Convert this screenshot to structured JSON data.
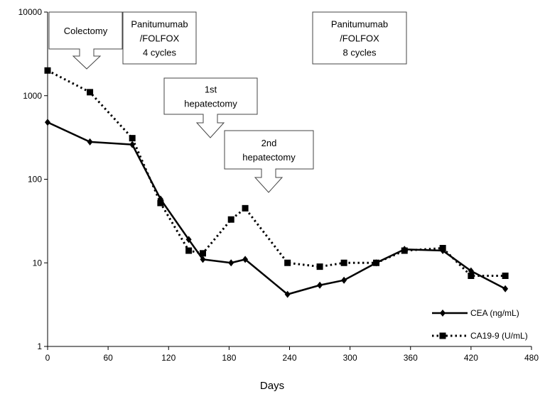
{
  "chart_data": {
    "type": "line",
    "xlabel": "Days",
    "ylabel": "",
    "title": "",
    "yscale": "log",
    "xlim": [
      0,
      480
    ],
    "ylim": [
      1,
      10000
    ],
    "x_ticks": [
      "0",
      "60",
      "120",
      "180",
      "240",
      "300",
      "360",
      "420",
      "480"
    ],
    "y_ticks": [
      "1",
      "10",
      "100",
      "1000",
      "10000"
    ],
    "grid": false,
    "legend_position": "bottom-right",
    "series": [
      {
        "name": "CEA (ng/mL)",
        "style": "solid",
        "marker": "diamond",
        "x": [
          0,
          42,
          84,
          112,
          140,
          154,
          182,
          196,
          238,
          270,
          294,
          326,
          354,
          392,
          420,
          454
        ],
        "y": [
          480,
          280,
          260,
          58,
          19,
          11,
          10,
          11,
          4.2,
          5.4,
          6.2,
          10,
          14.5,
          14,
          8,
          4.9
        ]
      },
      {
        "name": "CA19-9 (U/mL)",
        "style": "dotted",
        "marker": "square",
        "x": [
          0,
          42,
          84,
          112,
          140,
          154,
          182,
          196,
          238,
          270,
          294,
          326,
          354,
          392,
          420,
          454
        ],
        "y": [
          2000,
          1100,
          310,
          52,
          14,
          13,
          33,
          45,
          10,
          9,
          10,
          10,
          14,
          15,
          7,
          7
        ]
      }
    ],
    "annotations": [
      {
        "lines": [
          "Colectomy"
        ],
        "type": "arrow"
      },
      {
        "lines": [
          "Panitumumab",
          "/FOLFOX",
          "4 cycles"
        ],
        "type": "box"
      },
      {
        "lines": [
          "1st",
          "hepatectomy"
        ],
        "type": "arrow"
      },
      {
        "lines": [
          "2nd",
          "hepatectomy"
        ],
        "type": "arrow"
      },
      {
        "lines": [
          "Panitumumab",
          "/FOLFOX",
          "8 cycles"
        ],
        "type": "box"
      }
    ],
    "colors": {
      "line": "#000000",
      "box_border": "#444444",
      "background": "#ffffff"
    }
  }
}
